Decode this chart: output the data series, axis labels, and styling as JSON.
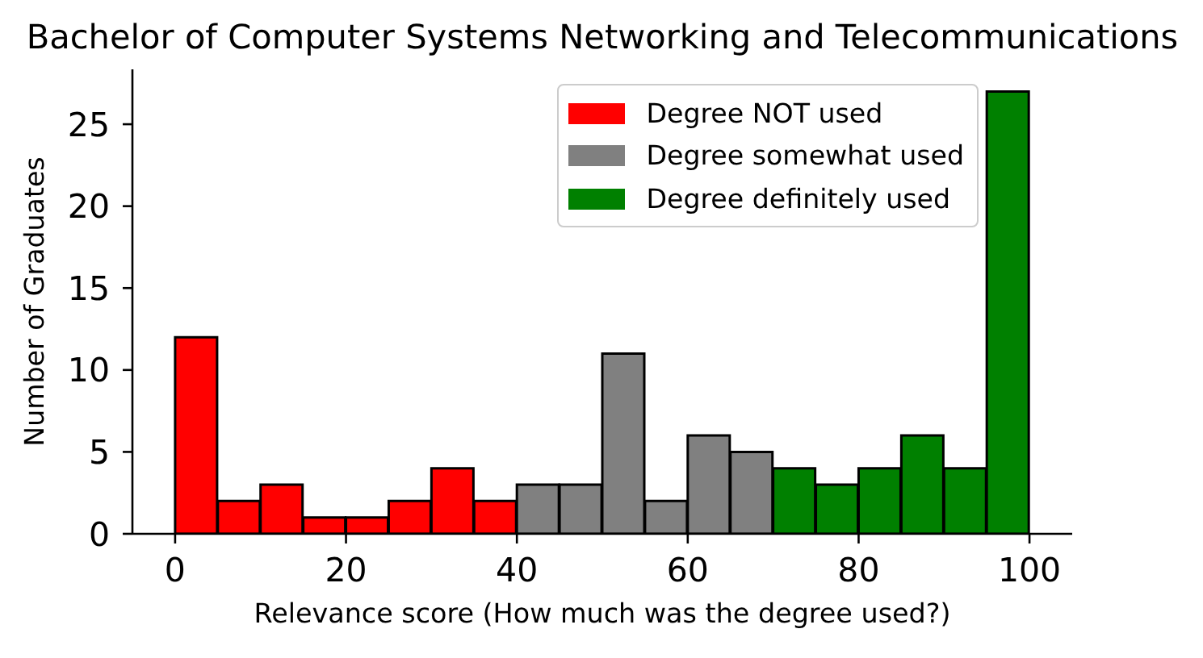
{
  "chart_data": {
    "type": "histogram",
    "title": "Bachelor of Computer Systems Networking and Telecommunications",
    "xlabel": "Relevance score (How much was the degree used?)",
    "ylabel": "Number of Graduates",
    "bins": [
      0,
      5,
      10,
      15,
      20,
      25,
      30,
      35,
      40,
      45,
      50,
      55,
      60,
      65,
      70,
      75,
      80,
      85,
      90,
      95,
      100
    ],
    "series": [
      {
        "name": "Degree NOT used",
        "color": "#ff0000",
        "values": [
          12,
          2,
          3,
          1,
          1,
          2,
          4,
          2,
          null,
          null,
          null,
          null,
          null,
          null,
          null,
          null,
          null,
          null,
          null,
          null
        ]
      },
      {
        "name": "Degree somewhat used",
        "color": "#808080",
        "values": [
          null,
          null,
          null,
          null,
          null,
          null,
          null,
          null,
          3,
          3,
          11,
          2,
          6,
          5,
          null,
          null,
          null,
          null,
          null,
          null
        ]
      },
      {
        "name": "Degree definitely used",
        "color": "#008000",
        "values": [
          null,
          null,
          null,
          null,
          null,
          null,
          null,
          null,
          null,
          null,
          null,
          null,
          null,
          null,
          4,
          3,
          4,
          6,
          4,
          27
        ]
      }
    ],
    "xlim": [
      -5,
      105
    ],
    "xticks": [
      0,
      20,
      40,
      60,
      80,
      100
    ],
    "ylim": [
      0,
      28.35
    ],
    "yticks": [
      0,
      5,
      10,
      15,
      20,
      25
    ],
    "legend": "top right"
  }
}
